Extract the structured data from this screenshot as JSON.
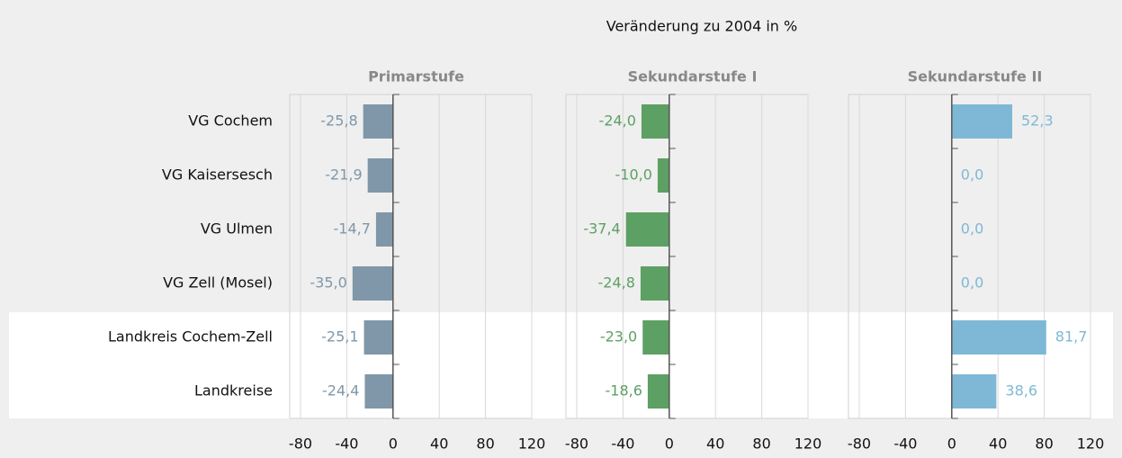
{
  "chart_data": {
    "type": "bar",
    "orientation": "horizontal",
    "title": "Veränderung zu 2004 in %",
    "categories": [
      "VG Cochem",
      "VG Kaisersesch",
      "VG Ulmen",
      "VG Zell (Mosel)",
      "Landkreis Cochem-Zell",
      "Landkreise"
    ],
    "series": [
      {
        "name": "Primarstufe",
        "color": "#7f97a8",
        "values": [
          -25.8,
          -21.9,
          -14.7,
          -35.0,
          -25.1,
          -24.4
        ],
        "value_labels": [
          "-25,8",
          "-21,9",
          "-14,7",
          "-35,0",
          "-25,1",
          "-24,4"
        ]
      },
      {
        "name": "Sekundarstufe I",
        "color": "#5da063",
        "values": [
          -24.0,
          -10.0,
          -37.4,
          -24.8,
          -23.0,
          -18.6
        ],
        "value_labels": [
          "-24,0",
          "-10,0",
          "-37,4",
          "-24,8",
          "-23,0",
          "-18,6"
        ]
      },
      {
        "name": "Sekundarstufe II",
        "color": "#7fb8d6",
        "values": [
          52.3,
          0.0,
          0.0,
          0.0,
          81.7,
          38.6
        ],
        "value_labels": [
          "52,3",
          "0,0",
          "0,0",
          "0,0",
          "81,7",
          "38,6"
        ]
      }
    ],
    "xlim": [
      -80,
      120
    ],
    "xticks": [
      -80,
      -40,
      0,
      40,
      80,
      120
    ],
    "grid": true
  }
}
